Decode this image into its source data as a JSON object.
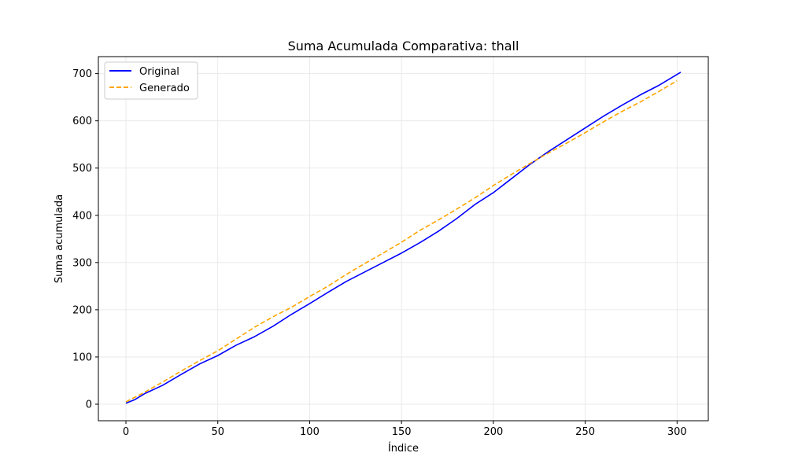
{
  "chart_data": {
    "type": "line",
    "title": "Suma Acumulada Comparativa: thall",
    "xlabel": "Índice",
    "ylabel": "Suma acumulada",
    "xlim": [
      -15,
      317
    ],
    "ylim": [
      -35,
      736
    ],
    "xticks": [
      0,
      50,
      100,
      150,
      200,
      250,
      300
    ],
    "yticks": [
      0,
      100,
      200,
      300,
      400,
      500,
      600,
      700
    ],
    "grid": true,
    "legend_position": "upper-left",
    "series": [
      {
        "name": "Original",
        "color": "#0000ff",
        "style": "solid",
        "points": [
          [
            0,
            2
          ],
          [
            5,
            10
          ],
          [
            10,
            22
          ],
          [
            20,
            40
          ],
          [
            30,
            63
          ],
          [
            40,
            85
          ],
          [
            50,
            103
          ],
          [
            60,
            125
          ],
          [
            70,
            143
          ],
          [
            80,
            165
          ],
          [
            90,
            190
          ],
          [
            100,
            213
          ],
          [
            110,
            237
          ],
          [
            120,
            260
          ],
          [
            130,
            280
          ],
          [
            140,
            300
          ],
          [
            150,
            320
          ],
          [
            160,
            342
          ],
          [
            170,
            366
          ],
          [
            180,
            393
          ],
          [
            190,
            423
          ],
          [
            200,
            448
          ],
          [
            210,
            478
          ],
          [
            220,
            508
          ],
          [
            230,
            535
          ],
          [
            240,
            560
          ],
          [
            250,
            585
          ],
          [
            260,
            610
          ],
          [
            270,
            633
          ],
          [
            280,
            655
          ],
          [
            290,
            675
          ],
          [
            302,
            703
          ]
        ]
      },
      {
        "name": "Generado",
        "color": "#ffa500",
        "style": "dashed",
        "points": [
          [
            0,
            5
          ],
          [
            10,
            25
          ],
          [
            20,
            47
          ],
          [
            30,
            70
          ],
          [
            40,
            92
          ],
          [
            50,
            113
          ],
          [
            60,
            138
          ],
          [
            70,
            163
          ],
          [
            80,
            185
          ],
          [
            90,
            205
          ],
          [
            100,
            228
          ],
          [
            110,
            250
          ],
          [
            120,
            275
          ],
          [
            130,
            298
          ],
          [
            140,
            320
          ],
          [
            150,
            343
          ],
          [
            160,
            368
          ],
          [
            170,
            390
          ],
          [
            180,
            413
          ],
          [
            190,
            437
          ],
          [
            200,
            463
          ],
          [
            210,
            487
          ],
          [
            220,
            510
          ],
          [
            230,
            532
          ],
          [
            240,
            553
          ],
          [
            250,
            575
          ],
          [
            260,
            598
          ],
          [
            270,
            620
          ],
          [
            280,
            640
          ],
          [
            290,
            662
          ],
          [
            300,
            685
          ]
        ]
      }
    ]
  }
}
